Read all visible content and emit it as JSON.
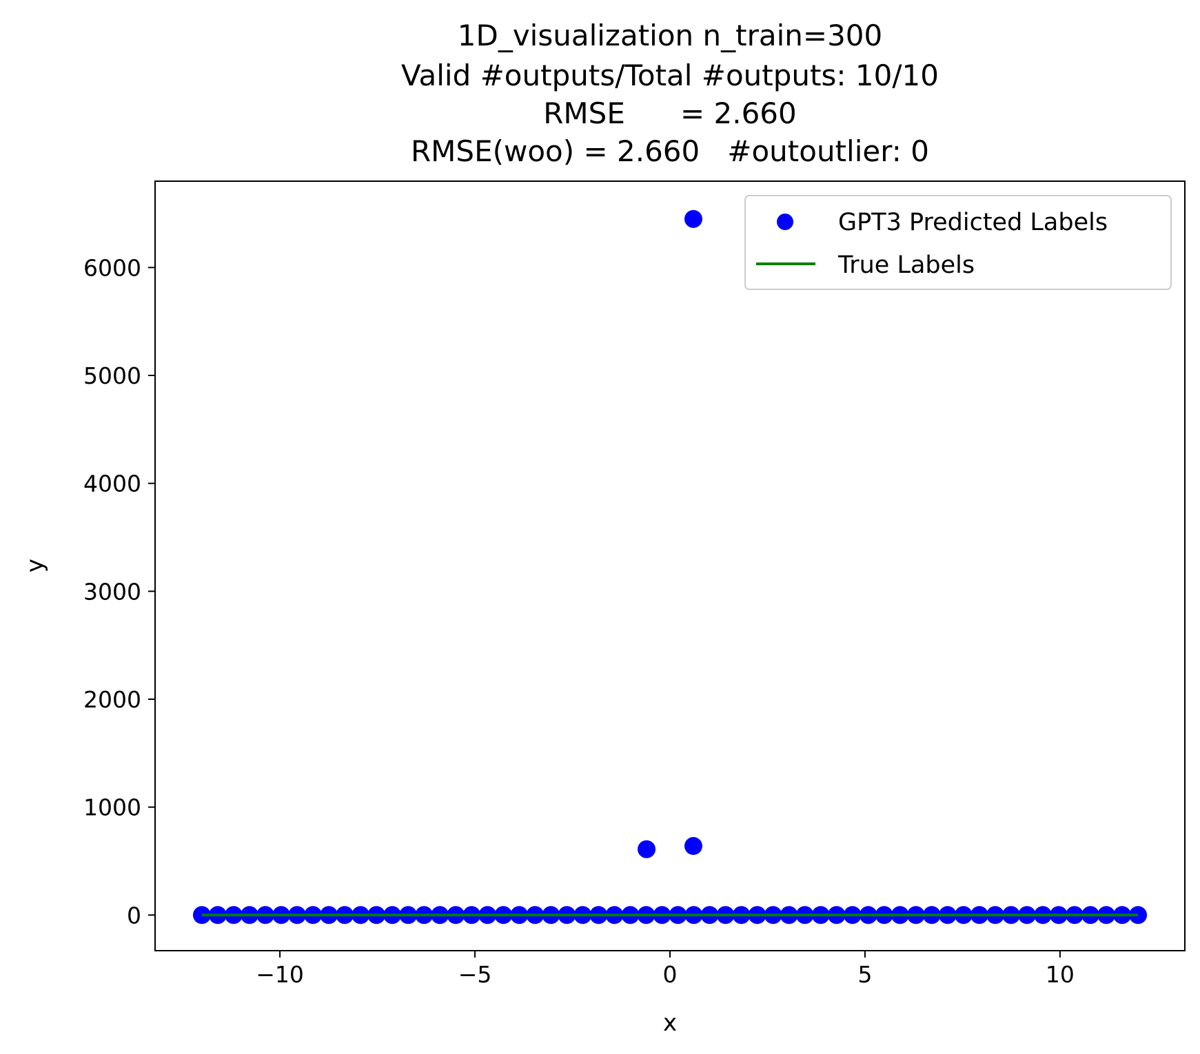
{
  "chart_data": {
    "type": "scatter",
    "title_lines": [
      "1D_visualization  n_train=300",
      "Valid #outputs/Total #outputs: 10/10",
      "RMSE      = 2.660",
      "RMSE(woo) = 2.660   #outoutlier: 0"
    ],
    "xlabel": "x",
    "ylabel": "y",
    "xlim": [
      -13.2,
      13.2
    ],
    "ylim": [
      -330,
      6800
    ],
    "x_ticks": [
      -10,
      -5,
      0,
      5,
      10
    ],
    "x_tick_labels": [
      "−10",
      "−5",
      "0",
      "5",
      "10"
    ],
    "y_ticks": [
      0,
      1000,
      2000,
      3000,
      4000,
      5000,
      6000
    ],
    "y_tick_labels": [
      "0",
      "1000",
      "2000",
      "3000",
      "4000",
      "5000",
      "6000"
    ],
    "grid": false,
    "legend_position": "top-right",
    "series": [
      {
        "name": "GPT3 Predicted Labels",
        "kind": "scatter",
        "color": "#0000ff",
        "x_range": [
          -12,
          12
        ],
        "n_points": 60,
        "baseline_y": 0,
        "points": [
          {
            "x": -0.6,
            "y": 610
          },
          {
            "x": 0.6,
            "y": 640
          },
          {
            "x": 0.6,
            "y": 6450
          }
        ]
      },
      {
        "name": "True Labels",
        "kind": "line",
        "color": "#008000",
        "x": [
          -12,
          12
        ],
        "y": [
          0,
          0
        ]
      }
    ]
  }
}
